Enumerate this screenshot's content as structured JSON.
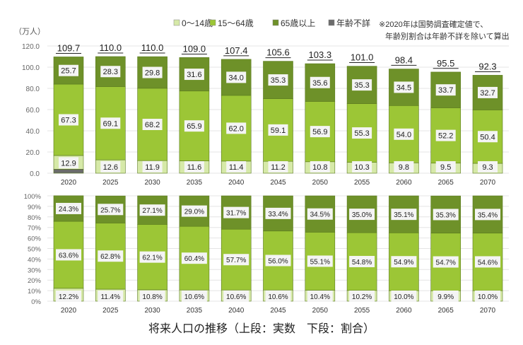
{
  "chart_data": [
    {
      "type": "bar",
      "stacked": true,
      "unit_label": "（万人）",
      "categories": [
        "2020",
        "2025",
        "2030",
        "2035",
        "2040",
        "2045",
        "2050",
        "2055",
        "2060",
        "2065",
        "2070"
      ],
      "ylim": [
        0,
        120
      ],
      "yticks": [
        "0.0",
        "20.0",
        "40.0",
        "60.0",
        "80.0",
        "100.0",
        "120.0"
      ],
      "grid": true,
      "totals": [
        "109.7",
        "110.0",
        "110.0",
        "109.0",
        "107.4",
        "105.6",
        "103.3",
        "101.0",
        "98.4",
        "95.5",
        "92.3"
      ],
      "series": [
        {
          "name": "年齢不詳",
          "color": "#6b6b6b",
          "values": [
            3.8,
            0,
            0,
            0,
            0,
            0,
            0,
            0,
            0,
            0,
            0
          ]
        },
        {
          "name": "0〜14歳",
          "color": "#d6e9a8",
          "values": [
            12.9,
            12.6,
            11.9,
            11.6,
            11.4,
            11.2,
            10.8,
            10.3,
            9.8,
            9.5,
            9.3
          ]
        },
        {
          "name": "15〜64歳",
          "color": "#9cc636",
          "values": [
            67.3,
            69.1,
            68.2,
            65.9,
            62.0,
            59.1,
            56.9,
            55.3,
            54.0,
            52.2,
            50.4
          ]
        },
        {
          "name": "65歳以上",
          "color": "#6e9129",
          "values": [
            25.7,
            28.3,
            29.8,
            31.6,
            34.0,
            35.3,
            35.6,
            35.3,
            34.5,
            33.7,
            32.7
          ]
        }
      ]
    },
    {
      "type": "bar",
      "stacked": true,
      "percent": true,
      "categories": [
        "2020",
        "2025",
        "2030",
        "2035",
        "2040",
        "2045",
        "2050",
        "2055",
        "2060",
        "2065",
        "2070"
      ],
      "ylim": [
        0,
        100
      ],
      "yticks": [
        "0%",
        "10%",
        "20%",
        "30%",
        "40%",
        "50%",
        "60%",
        "70%",
        "80%",
        "90%",
        "100%"
      ],
      "grid": true,
      "series": [
        {
          "name": "0〜14歳",
          "color": "#d6e9a8",
          "values": [
            12.2,
            11.4,
            10.8,
            10.6,
            10.6,
            10.6,
            10.4,
            10.2,
            10.0,
            9.9,
            10.0
          ]
        },
        {
          "name": "15〜64歳",
          "color": "#9cc636",
          "values": [
            63.6,
            62.8,
            62.1,
            60.4,
            57.7,
            56.0,
            55.1,
            54.8,
            54.9,
            54.7,
            54.6
          ]
        },
        {
          "name": "65歳以上",
          "color": "#6e9129",
          "values": [
            24.3,
            25.7,
            27.1,
            29.0,
            31.7,
            33.4,
            34.5,
            35.0,
            35.1,
            35.3,
            35.4
          ]
        }
      ]
    }
  ],
  "legend": [
    "0〜14歳",
    "15〜64歳",
    "65歳以上",
    "年齢不詳"
  ],
  "note": [
    "※2020年は国勢調査確定値で、",
    "年齢別割合は年齢不詳を除いて算出"
  ],
  "title": "将来人口の推移（上段：実数　下段：割合）"
}
